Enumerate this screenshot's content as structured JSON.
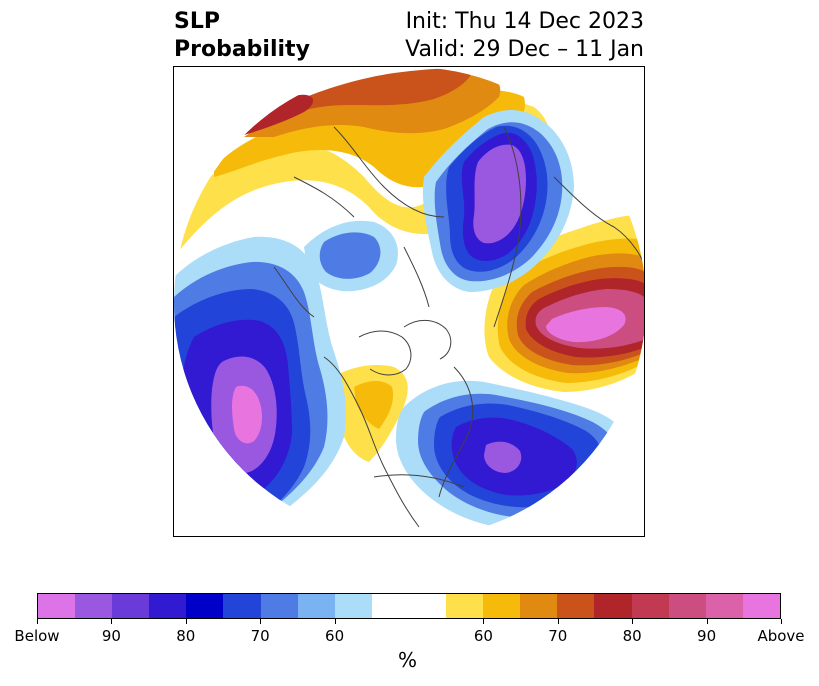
{
  "title": {
    "main_line1": "SLP",
    "main_line2": "Probability",
    "init": "Init: Thu 14 Dec 2023",
    "valid": "Valid: 29 Dec – 11 Jan"
  },
  "colorbar": {
    "unit": "%",
    "colors": [
      "#dc73e6",
      "#9a57e0",
      "#6a3bd8",
      "#3219d2",
      "#0001c8",
      "#2244d8",
      "#4e7ce4",
      "#7bb2f2",
      "#abdcf8",
      "#ffffff",
      "#ffffff",
      "#fee04a",
      "#f6bb0a",
      "#e08a11",
      "#c9531a",
      "#b0252a",
      "#c23a52",
      "#cc4e80",
      "#db62a8",
      "#e874e0"
    ],
    "tick_labels": [
      "Below",
      "90",
      "80",
      "70",
      "60",
      "60",
      "70",
      "80",
      "90",
      "Above"
    ]
  },
  "map": {
    "colors": {
      "below_90": "#9a57e0",
      "below_80": "#3219d2",
      "below_70": "#2244d8",
      "below_60": "#4e7ce4",
      "below_50": "#abdcf8",
      "above_50": "#fee04a",
      "above_60": "#f6bb0a",
      "above_70": "#e08a11",
      "above_80": "#c9531a",
      "above_85": "#b0252a",
      "above_90": "#cc4e80",
      "above_max": "#e874e0",
      "coast": "#404040"
    }
  }
}
